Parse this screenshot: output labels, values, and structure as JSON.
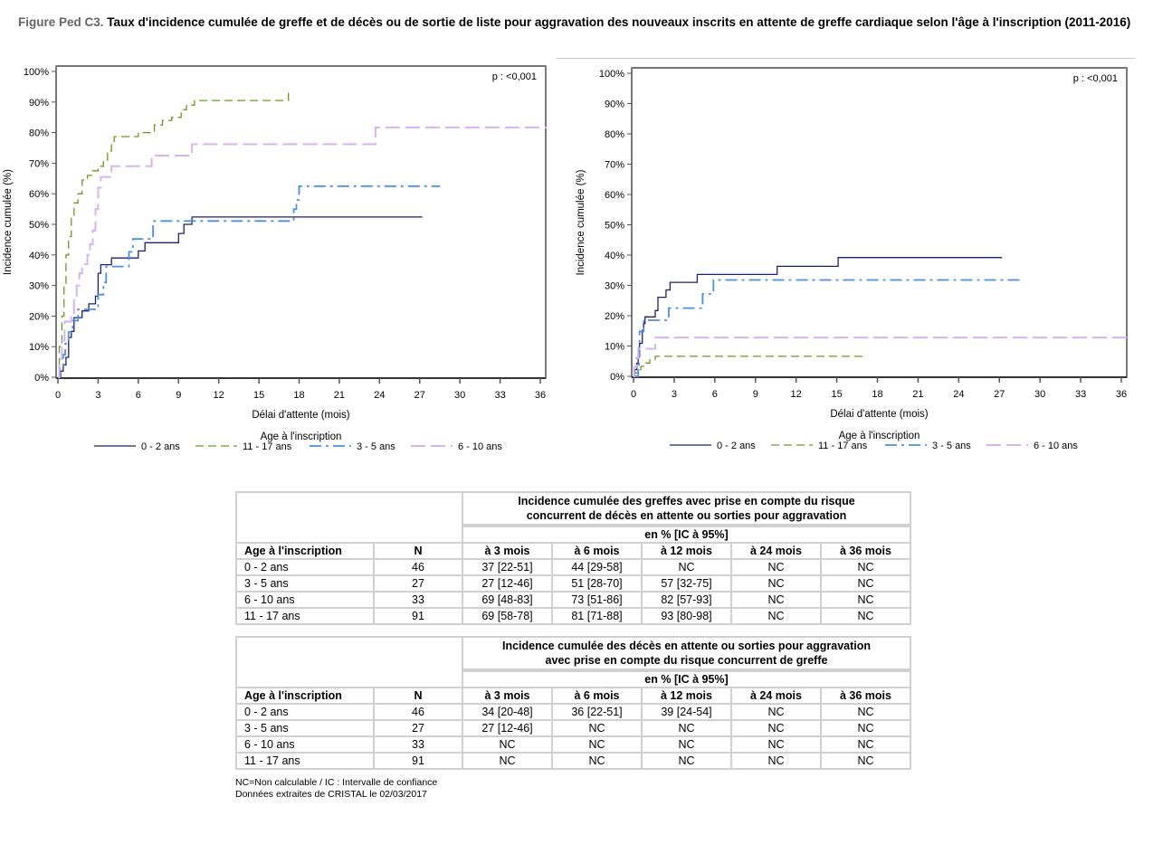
{
  "figure": {
    "label": "Figure Ped C3.",
    "title": "Taux d'incidence cumulée de greffe et de décès ou de sortie de liste pour aggravation des nouveaux inscrits en attente de greffe cardiaque selon l'âge à l'inscription (2011-2016)"
  },
  "colors": {
    "0-2": "#1f2170",
    "11-17": "#6b9a1f",
    "3-5": "#4a90e8",
    "6-10": "#d6b3f0"
  },
  "chart_data": [
    {
      "type": "line",
      "id": "greffe",
      "title": "",
      "xlabel": "Délai d'attente (mois)",
      "ylabel": "Incidence cumulée (%)",
      "xlim": [
        0,
        36
      ],
      "ylim": [
        0,
        100
      ],
      "xticks": [
        0,
        3,
        6,
        9,
        12,
        15,
        18,
        21,
        24,
        27,
        30,
        33,
        36
      ],
      "yticks": [
        "0%",
        "10%",
        "20%",
        "30%",
        "40%",
        "50%",
        "60%",
        "70%",
        "80%",
        "90%",
        "100%"
      ],
      "annotation": "p : <0,001",
      "legend_title": "Age à l'inscription",
      "legend_position": "bottom",
      "grid": false,
      "series": [
        {
          "name": "0 - 2 ans",
          "key": "0-2",
          "style": "solid",
          "points": [
            [
              0,
              0
            ],
            [
              0.2,
              0
            ],
            [
              0.2,
              2
            ],
            [
              0.4,
              2
            ],
            [
              0.4,
              4
            ],
            [
              0.6,
              4
            ],
            [
              0.6,
              6.5
            ],
            [
              0.8,
              6.5
            ],
            [
              0.8,
              13
            ],
            [
              1.0,
              13
            ],
            [
              1.0,
              15
            ],
            [
              1.2,
              15
            ],
            [
              1.2,
              19.5
            ],
            [
              1.8,
              19.5
            ],
            [
              1.8,
              21.7
            ],
            [
              2.3,
              21.7
            ],
            [
              2.3,
              24
            ],
            [
              2.8,
              24
            ],
            [
              2.8,
              26.5
            ],
            [
              3.0,
              26.5
            ],
            [
              3.0,
              34
            ],
            [
              3.2,
              34
            ],
            [
              3.2,
              36.8
            ],
            [
              4.0,
              36.8
            ],
            [
              4.0,
              39
            ],
            [
              6.0,
              39
            ],
            [
              6.0,
              41.3
            ],
            [
              6.5,
              41.3
            ],
            [
              6.5,
              44
            ],
            [
              9.0,
              44
            ],
            [
              9.0,
              47
            ],
            [
              9.4,
              47
            ],
            [
              9.4,
              50
            ],
            [
              10.0,
              50
            ],
            [
              10.0,
              52.4
            ],
            [
              27.2,
              52.4
            ]
          ]
        },
        {
          "name": "11 - 17 ans",
          "key": "11-17",
          "style": "dash",
          "points": [
            [
              0,
              0
            ],
            [
              0.1,
              0
            ],
            [
              0.1,
              10
            ],
            [
              0.3,
              10
            ],
            [
              0.3,
              20
            ],
            [
              0.45,
              20
            ],
            [
              0.45,
              30
            ],
            [
              0.6,
              30
            ],
            [
              0.6,
              40
            ],
            [
              0.8,
              40
            ],
            [
              0.8,
              46
            ],
            [
              1.0,
              46
            ],
            [
              1.0,
              53
            ],
            [
              1.2,
              53
            ],
            [
              1.2,
              57
            ],
            [
              1.5,
              57
            ],
            [
              1.5,
              60
            ],
            [
              1.8,
              60
            ],
            [
              1.8,
              64.5
            ],
            [
              2.2,
              64.5
            ],
            [
              2.2,
              66
            ],
            [
              2.6,
              66
            ],
            [
              2.6,
              67.5
            ],
            [
              3.0,
              67.5
            ],
            [
              3.0,
              69
            ],
            [
              3.4,
              69
            ],
            [
              3.4,
              71
            ],
            [
              3.7,
              71
            ],
            [
              3.7,
              74
            ],
            [
              4.0,
              74
            ],
            [
              4.0,
              76.5
            ],
            [
              4.2,
              76.5
            ],
            [
              4.2,
              78.7
            ],
            [
              6.0,
              78.7
            ],
            [
              6.0,
              80
            ],
            [
              7.2,
              80
            ],
            [
              7.2,
              82.5
            ],
            [
              7.8,
              82.5
            ],
            [
              7.8,
              84
            ],
            [
              8.5,
              84
            ],
            [
              8.5,
              85
            ],
            [
              9.2,
              85
            ],
            [
              9.2,
              87.5
            ],
            [
              9.6,
              87.5
            ],
            [
              9.6,
              89
            ],
            [
              10.2,
              89
            ],
            [
              10.2,
              90.5
            ],
            [
              17.2,
              90.5
            ],
            [
              17.2,
              93.5
            ]
          ]
        },
        {
          "name": "3 - 5 ans",
          "key": "3-5",
          "style": "dashdot",
          "points": [
            [
              0,
              0
            ],
            [
              0.15,
              0
            ],
            [
              0.15,
              3.7
            ],
            [
              0.4,
              3.7
            ],
            [
              0.4,
              7.4
            ],
            [
              0.55,
              7.4
            ],
            [
              0.55,
              11
            ],
            [
              0.8,
              11
            ],
            [
              0.8,
              14.8
            ],
            [
              1.1,
              14.8
            ],
            [
              1.1,
              18.5
            ],
            [
              1.5,
              18.5
            ],
            [
              1.5,
              22.2
            ],
            [
              3.0,
              22.2
            ],
            [
              3.0,
              27
            ],
            [
              3.4,
              27
            ],
            [
              3.4,
              31
            ],
            [
              3.6,
              31
            ],
            [
              3.6,
              36.2
            ],
            [
              5.3,
              36.2
            ],
            [
              5.3,
              41
            ],
            [
              5.6,
              41
            ],
            [
              5.6,
              45.2
            ],
            [
              7.1,
              45.2
            ],
            [
              7.1,
              51.1
            ],
            [
              17.6,
              51.1
            ],
            [
              17.6,
              55
            ],
            [
              17.8,
              55
            ],
            [
              17.8,
              58
            ],
            [
              18.0,
              58
            ],
            [
              18.0,
              62.5
            ],
            [
              28.5,
              62.5
            ]
          ]
        },
        {
          "name": "6 - 10 ans",
          "key": "6-10",
          "style": "longdash",
          "points": [
            [
              0,
              0
            ],
            [
              0.1,
              0
            ],
            [
              0.1,
              6
            ],
            [
              0.3,
              6
            ],
            [
              0.3,
              12
            ],
            [
              0.5,
              12
            ],
            [
              0.5,
              18.2
            ],
            [
              1.0,
              18.2
            ],
            [
              1.0,
              21
            ],
            [
              1.2,
              21
            ],
            [
              1.2,
              26
            ],
            [
              1.4,
              26
            ],
            [
              1.4,
              30
            ],
            [
              1.6,
              30
            ],
            [
              1.6,
              34
            ],
            [
              1.8,
              34
            ],
            [
              1.8,
              37
            ],
            [
              2.2,
              37
            ],
            [
              2.2,
              40
            ],
            [
              2.4,
              40
            ],
            [
              2.4,
              43.5
            ],
            [
              2.6,
              43.5
            ],
            [
              2.6,
              48
            ],
            [
              2.8,
              48
            ],
            [
              2.8,
              55
            ],
            [
              3.0,
              55
            ],
            [
              3.0,
              62
            ],
            [
              3.2,
              62
            ],
            [
              3.2,
              65.5
            ],
            [
              4.0,
              65.5
            ],
            [
              4.0,
              69
            ],
            [
              7.0,
              69
            ],
            [
              7.0,
              72.5
            ],
            [
              10.0,
              72.5
            ],
            [
              10.0,
              76.2
            ],
            [
              23.7,
              76.2
            ],
            [
              23.7,
              81.7
            ],
            [
              36.5,
              81.7
            ]
          ]
        }
      ]
    },
    {
      "type": "line",
      "id": "deces",
      "title": "",
      "xlabel": "Délai d'attente (mois)",
      "ylabel": "Incidence cumulée (%)",
      "xlim": [
        0,
        36
      ],
      "ylim": [
        0,
        100
      ],
      "xticks": [
        0,
        3,
        6,
        9,
        12,
        15,
        18,
        21,
        24,
        27,
        30,
        33,
        36
      ],
      "yticks": [
        "0%",
        "10%",
        "20%",
        "30%",
        "40%",
        "50%",
        "60%",
        "70%",
        "80%",
        "90%",
        "100%"
      ],
      "annotation": "p : <0,001",
      "legend_title": "Age à l'inscription",
      "legend_position": "bottom",
      "grid": false,
      "series": [
        {
          "name": "0 - 2 ans",
          "key": "0-2",
          "style": "solid",
          "points": [
            [
              0,
              0
            ],
            [
              0.1,
              0
            ],
            [
              0.1,
              2.2
            ],
            [
              0.25,
              2.2
            ],
            [
              0.25,
              4.3
            ],
            [
              0.35,
              4.3
            ],
            [
              0.35,
              6.5
            ],
            [
              0.45,
              6.5
            ],
            [
              0.45,
              10.9
            ],
            [
              0.65,
              10.9
            ],
            [
              0.65,
              15.2
            ],
            [
              0.75,
              15.2
            ],
            [
              0.75,
              17.4
            ],
            [
              0.85,
              17.4
            ],
            [
              0.85,
              19.6
            ],
            [
              1.6,
              19.6
            ],
            [
              1.6,
              21.7
            ],
            [
              1.8,
              21.7
            ],
            [
              1.8,
              26.1
            ],
            [
              2.4,
              26.1
            ],
            [
              2.4,
              28.5
            ],
            [
              2.7,
              28.5
            ],
            [
              2.7,
              31
            ],
            [
              4.7,
              31
            ],
            [
              4.7,
              33.6
            ],
            [
              10.6,
              33.6
            ],
            [
              10.6,
              36.3
            ],
            [
              15.1,
              36.3
            ],
            [
              15.1,
              39.2
            ],
            [
              27.2,
              39.2
            ]
          ]
        },
        {
          "name": "11 - 17 ans",
          "key": "11-17",
          "style": "dash",
          "points": [
            [
              0,
              0
            ],
            [
              0.1,
              0
            ],
            [
              0.1,
              1.1
            ],
            [
              0.3,
              1.1
            ],
            [
              0.3,
              2.2
            ],
            [
              0.55,
              2.2
            ],
            [
              0.55,
              3.3
            ],
            [
              0.9,
              3.3
            ],
            [
              0.9,
              4.4
            ],
            [
              1.2,
              4.4
            ],
            [
              1.2,
              5.5
            ],
            [
              1.6,
              5.5
            ],
            [
              1.6,
              6.6
            ],
            [
              17.0,
              6.6
            ]
          ]
        },
        {
          "name": "3 - 5 ans",
          "key": "3-5",
          "style": "dashdot",
          "points": [
            [
              0,
              0
            ],
            [
              0.35,
              0
            ],
            [
              0.35,
              3.7
            ],
            [
              0.4,
              3.7
            ],
            [
              0.4,
              11
            ],
            [
              0.45,
              11
            ],
            [
              0.45,
              14.8
            ],
            [
              0.75,
              14.8
            ],
            [
              0.75,
              18.5
            ],
            [
              2.6,
              18.5
            ],
            [
              2.6,
              22.5
            ],
            [
              5.1,
              22.5
            ],
            [
              5.1,
              27.2
            ],
            [
              5.9,
              27.2
            ],
            [
              5.9,
              31.8
            ],
            [
              28.5,
              31.8
            ]
          ]
        },
        {
          "name": "6 - 10 ans",
          "key": "6-10",
          "style": "longdash",
          "points": [
            [
              0,
              0
            ],
            [
              0.05,
              0
            ],
            [
              0.05,
              3
            ],
            [
              0.2,
              3
            ],
            [
              0.2,
              6.1
            ],
            [
              0.35,
              6.1
            ],
            [
              0.35,
              9.1
            ],
            [
              1.6,
              9.1
            ],
            [
              1.6,
              12.8
            ],
            [
              36.5,
              12.8
            ]
          ]
        }
      ]
    }
  ],
  "table1": {
    "title_line1": "Incidence cumulée des greffes avec prise en compte du risque",
    "title_line2": "concurrent de décès en attente ou sorties pour aggravation",
    "unit": "en % [IC à 95%]",
    "headers": [
      "Age à l'inscription",
      "N",
      "à 3 mois",
      "à 6 mois",
      "à 12 mois",
      "à 24 mois",
      "à 36 mois"
    ],
    "rows": [
      [
        "0 - 2 ans",
        "46",
        "37 [22-51]",
        "44 [29-58]",
        "NC",
        "NC",
        "NC"
      ],
      [
        "3 - 5 ans",
        "27",
        "27 [12-46]",
        "51 [28-70]",
        "57 [32-75]",
        "NC",
        "NC"
      ],
      [
        "6 - 10 ans",
        "33",
        "69 [48-83]",
        "73 [51-86]",
        "82 [57-93]",
        "NC",
        "NC"
      ],
      [
        "11 - 17 ans",
        "91",
        "69 [58-78]",
        "81 [71-88]",
        "93 [80-98]",
        "NC",
        "NC"
      ]
    ]
  },
  "table2": {
    "title_line1": "Incidence cumulée des décès en attente ou sorties pour aggravation",
    "title_line2": "avec prise en compte du risque concurrent de greffe",
    "unit": "en % [IC à 95%]",
    "headers": [
      "Age à l'inscription",
      "N",
      "à 3 mois",
      "à 6 mois",
      "à 12 mois",
      "à 24 mois",
      "à 36 mois"
    ],
    "rows": [
      [
        "0 - 2 ans",
        "46",
        "34 [20-48]",
        "36 [22-51]",
        "39 [24-54]",
        "NC",
        "NC"
      ],
      [
        "3 - 5 ans",
        "27",
        "27 [12-46]",
        "NC",
        "NC",
        "NC",
        "NC"
      ],
      [
        "6 - 10 ans",
        "33",
        "NC",
        "NC",
        "NC",
        "NC",
        "NC"
      ],
      [
        "11 - 17 ans",
        "91",
        "NC",
        "NC",
        "NC",
        "NC",
        "NC"
      ]
    ]
  },
  "footnotes": {
    "line1": "NC=Non calculable / IC : Intervalle de confiance",
    "line2": "Données extraites de CRISTAL le 02/03/2017"
  }
}
